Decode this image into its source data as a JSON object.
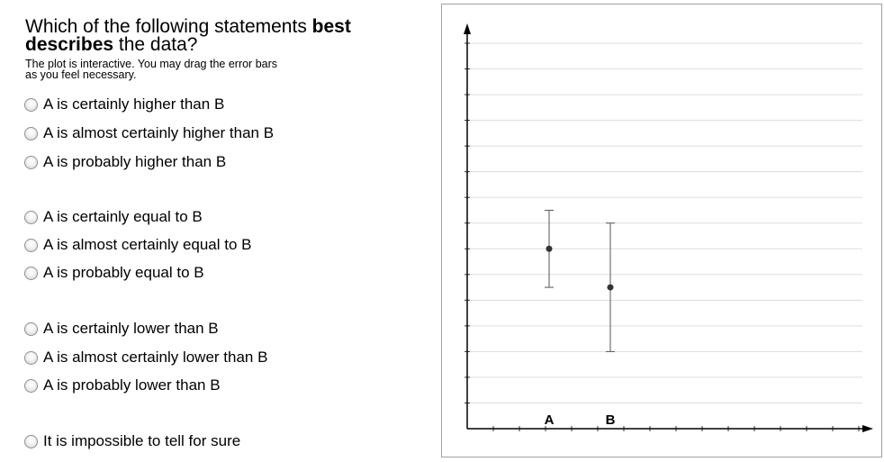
{
  "question": {
    "text_before": "Which of the following statements ",
    "bold1": "best",
    "bold2": "describes",
    "text_after": " the data?",
    "instructions_line1": "The plot is interactive. You may drag the error bars",
    "instructions_line2": "as you feel necessary."
  },
  "options": [
    "A is certainly higher than B",
    "A is almost certainly higher than B",
    "A is probably higher than B",
    "A is certainly equal to B",
    "A is almost certainly equal to B",
    "A is probably equal to B",
    "A is certainly lower than B",
    "A is almost certainly lower than B",
    "A is probably lower than B",
    "It is impossible to tell for sure"
  ],
  "chart_data": {
    "type": "scatter",
    "title": "",
    "xlabel": "",
    "ylabel": "",
    "categories": [
      "A",
      "B"
    ],
    "ylim": [
      0,
      15
    ],
    "grid": "horizontal",
    "series": [
      {
        "points": [
          {
            "x": "A",
            "y": 7,
            "error_low": 5.5,
            "error_high": 8.5
          },
          {
            "x": "B",
            "y": 5.5,
            "error_low": 3,
            "error_high": 8
          }
        ]
      }
    ]
  }
}
